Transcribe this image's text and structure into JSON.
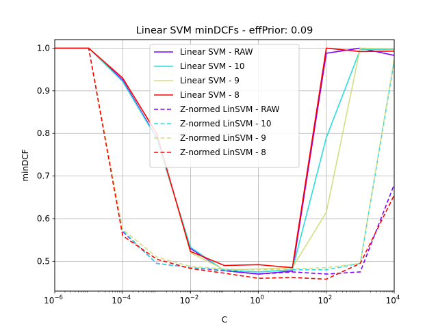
{
  "chart_data": {
    "type": "line",
    "title": "Linear SVM minDCFs - effPrior: 0.09",
    "xlabel": "C",
    "ylabel": "minDCF",
    "xscale": "log",
    "xlim": [
      1e-06,
      10000
    ],
    "ylim": [
      0.43,
      1.02
    ],
    "grid": true,
    "legend_position": "top-center",
    "x": [
      1e-06,
      1e-05,
      0.0001,
      0.001,
      0.01,
      0.1,
      1,
      10,
      100,
      1000,
      10000
    ],
    "x_ticks": [
      {
        "base": "10",
        "exp": "−6"
      },
      {
        "base": "10",
        "exp": "−4"
      },
      {
        "base": "10",
        "exp": "−2"
      },
      {
        "base": "10",
        "exp": "0"
      },
      {
        "base": "10",
        "exp": "2"
      },
      {
        "base": "10",
        "exp": "4"
      }
    ],
    "y_ticks": [
      "0.5",
      "0.6",
      "0.7",
      "0.8",
      "0.9",
      "1.0"
    ],
    "series": [
      {
        "name": "Linear SVM - RAW",
        "color": "#8000ff",
        "dash": false,
        "values": [
          1.0,
          1.0,
          0.925,
          0.79,
          0.53,
          0.478,
          0.47,
          0.477,
          0.988,
          1.0,
          0.983
        ]
      },
      {
        "name": "Linear SVM - 10",
        "color": "#2adddd",
        "dash": false,
        "values": [
          1.0,
          1.0,
          0.922,
          0.788,
          0.533,
          0.478,
          0.475,
          0.48,
          0.79,
          0.997,
          0.997
        ]
      },
      {
        "name": "Linear SVM - 9",
        "color": "#d4dd80",
        "dash": false,
        "values": [
          1.0,
          1.0,
          0.93,
          0.8,
          0.52,
          0.48,
          0.482,
          0.485,
          0.615,
          1.0,
          0.998
        ]
      },
      {
        "name": "Linear SVM - 8",
        "color": "#ff0000",
        "dash": false,
        "values": [
          1.0,
          1.0,
          0.93,
          0.8,
          0.523,
          0.49,
          0.492,
          0.485,
          1.0,
          0.992,
          0.993
        ]
      },
      {
        "name": "Z-normed LinSVM - RAW",
        "color": "#8000ff",
        "dash": true,
        "values": [
          1.0,
          1.0,
          0.57,
          0.495,
          0.485,
          0.478,
          0.47,
          0.475,
          0.47,
          0.475,
          0.68
        ]
      },
      {
        "name": "Z-normed LinSVM - 10",
        "color": "#2adddd",
        "dash": true,
        "values": [
          1.0,
          1.0,
          0.572,
          0.495,
          0.485,
          0.48,
          0.475,
          0.48,
          0.48,
          0.495,
          0.97
        ]
      },
      {
        "name": "Z-normed LinSVM - 9",
        "color": "#d4dd80",
        "dash": true,
        "values": [
          1.0,
          1.0,
          0.575,
          0.51,
          0.488,
          0.482,
          0.48,
          0.482,
          0.485,
          0.495,
          0.975
        ]
      },
      {
        "name": "Z-normed LinSVM - 8",
        "color": "#ff0000",
        "dash": true,
        "values": [
          1.0,
          1.0,
          0.56,
          0.505,
          0.483,
          0.472,
          0.46,
          0.462,
          0.458,
          0.495,
          0.655
        ]
      }
    ]
  }
}
